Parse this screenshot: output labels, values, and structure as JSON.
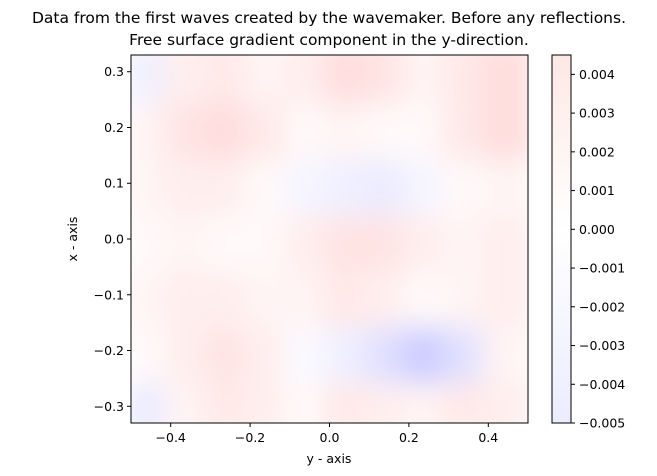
{
  "chart_data": {
    "type": "heatmap",
    "title_lines": [
      "Data from the first waves created by the wavemaker. Before any reflections.",
      "Free surface gradient component in the y-direction."
    ],
    "xlabel": "y - axis",
    "ylabel": "x - axis",
    "xlim": [
      -0.5,
      0.5
    ],
    "ylim": [
      -0.33,
      0.33
    ],
    "x_ticks": [
      "−0.4",
      "−0.2",
      "0.0",
      "0.2",
      "0.4"
    ],
    "x_tick_values": [
      -0.4,
      -0.2,
      0.0,
      0.2,
      0.4
    ],
    "y_ticks": [
      "−0.3",
      "−0.2",
      "−0.1",
      "0.0",
      "0.1",
      "0.2",
      "0.3"
    ],
    "y_tick_values": [
      -0.3,
      -0.2,
      -0.1,
      0.0,
      0.1,
      0.2,
      0.3
    ],
    "colormap": "bwr",
    "colormap_colors": {
      "low": "#0000ff",
      "mid": "#ffffff",
      "high": "#ff0000"
    },
    "colorbar": {
      "vmin": -0.005,
      "vmax": 0.0045,
      "ticks": [
        "0.004",
        "0.003",
        "0.002",
        "0.001",
        "0.000",
        "−0.001",
        "−0.002",
        "−0.003",
        "−0.004",
        "−0.005"
      ],
      "tick_values": [
        0.004,
        0.003,
        0.002,
        0.001,
        0.0,
        -0.001,
        -0.002,
        -0.003,
        -0.004,
        -0.005
      ]
    },
    "y_grid": [
      -0.3,
      -0.2,
      -0.1,
      0.0,
      0.1,
      0.2,
      0.3
    ],
    "x_grid": [
      -0.45,
      -0.35,
      -0.25,
      -0.15,
      -0.05,
      0.05,
      0.15,
      0.25,
      0.35,
      0.45
    ],
    "values": [
      [
        -0.0004,
        0.0002,
        0.0004,
        0.0003,
        0.0001,
        0.0004,
        0.0003,
        0.0002,
        0.0004,
        0.0003
      ],
      [
        0.0001,
        0.0003,
        0.0005,
        0.0003,
        -0.0001,
        -0.0003,
        -0.0006,
        -0.001,
        -0.0006,
        0.0002
      ],
      [
        0.0002,
        0.0003,
        0.0003,
        0.0002,
        0.0002,
        0.0004,
        0.0003,
        0.0001,
        0.0002,
        0.0003
      ],
      [
        0.0001,
        0.0002,
        0.0001,
        0.0001,
        0.0003,
        0.0005,
        0.0005,
        0.0003,
        0.0002,
        0.0003
      ],
      [
        0.0002,
        0.0003,
        0.0003,
        0.0001,
        -0.0002,
        -0.0003,
        -0.0004,
        -0.0002,
        0.0001,
        0.0002
      ],
      [
        0.0002,
        0.0005,
        0.0006,
        0.0004,
        0.0001,
        0.0002,
        0.0001,
        0.0001,
        0.0004,
        0.0006
      ],
      [
        -0.0003,
        0.0003,
        0.0004,
        0.0002,
        0.0003,
        0.0006,
        0.0005,
        0.0002,
        0.0004,
        0.0006
      ]
    ]
  }
}
